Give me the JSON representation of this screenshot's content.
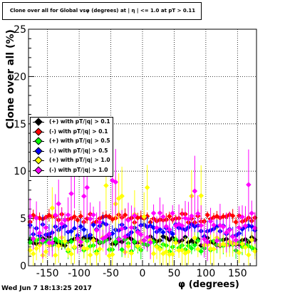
{
  "title": "Clone  over all for Global vsφ (degrees) at | η | <= 1.0 at pT > 0.11",
  "ylabel": "Clone  over all (%)",
  "xlabel": "φ (degrees)",
  "timestamp": "Wed Jun  7 18:13:25 2017",
  "legend": [
    {
      "label": "(+) with pT/|q| > 0.1",
      "color": "#000000"
    },
    {
      "label": "(-) with pT/|q| > 0.1",
      "color": "#ff0000"
    },
    {
      "label": "(+) with pT/|q| > 0.5",
      "color": "#00ff00"
    },
    {
      "label": "(-) with pT/|q| > 0.5",
      "color": "#0000ff"
    },
    {
      "label": "(+) with pT/|q| > 1.0",
      "color": "#ffff00"
    },
    {
      "label": "(-) with pT/|q| > 1.0",
      "color": "#ff00ff"
    }
  ],
  "chart_data": {
    "type": "scatter",
    "title": "Clone  over all for Global vsφ (degrees) at | η | <= 1.0 at pT > 0.11",
    "xlabel": "φ (degrees)",
    "ylabel": "Clone  over all (%)",
    "xlim": [
      -180,
      180
    ],
    "ylim": [
      0,
      25
    ],
    "xticks": [
      -150,
      -100,
      -50,
      0,
      50,
      100,
      150
    ],
    "yticks": [
      0,
      5,
      10,
      15,
      20,
      25
    ],
    "grid": true,
    "legend_position": "left",
    "series": [
      {
        "name": "(+) with pT/|q| > 0.1",
        "color": "#000000",
        "base": 2.6,
        "spread": 0.5,
        "err": 0.4,
        "seed": 11
      },
      {
        "name": "(-) with pT/|q| > 0.1",
        "color": "#ff0000",
        "base": 5.0,
        "spread": 0.5,
        "err": 0.5,
        "seed": 23
      },
      {
        "name": "(+) with pT/|q| > 0.5",
        "color": "#00ff00",
        "base": 2.2,
        "spread": 0.7,
        "err": 0.7,
        "seed": 37
      },
      {
        "name": "(-) with pT/|q| > 0.5",
        "color": "#0000ff",
        "base": 3.8,
        "spread": 0.7,
        "err": 0.8,
        "seed": 41
      },
      {
        "name": "(+) with pT/|q| > 1.0",
        "color": "#ffff00",
        "base": 2.0,
        "spread": 1.0,
        "err": 1.2,
        "seed": 53
      },
      {
        "name": "(-) with pT/|q| > 1.0",
        "color": "#ff00ff",
        "base": 4.0,
        "spread": 1.6,
        "err": 1.6,
        "seed": 67
      }
    ]
  }
}
